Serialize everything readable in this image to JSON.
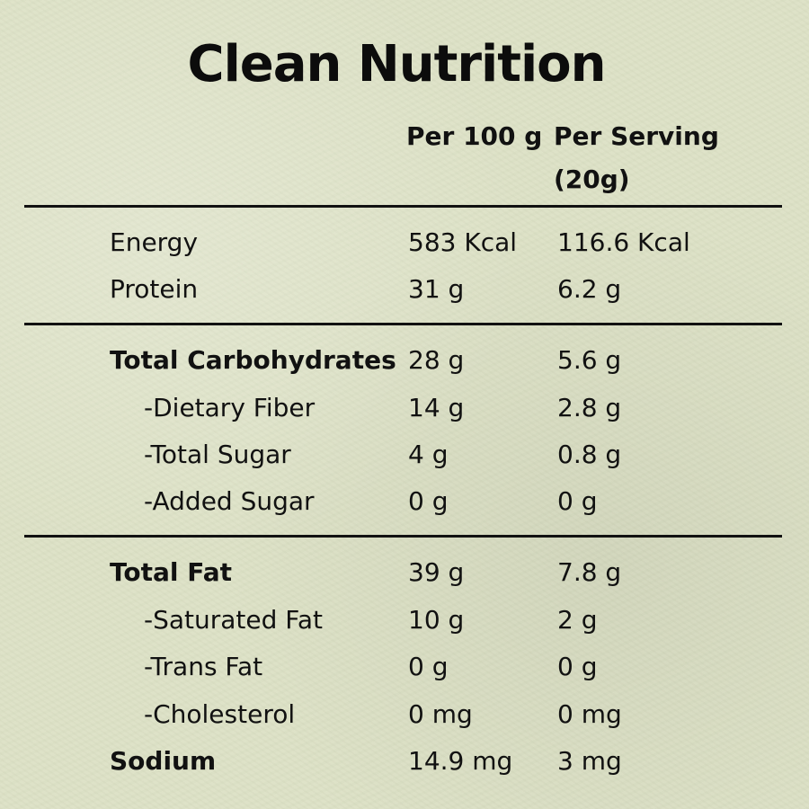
{
  "title": "Clean Nutrition",
  "headers": {
    "per_100g": "Per 100 g",
    "per_serving": "Per Serving (20g)"
  },
  "rows": [
    {
      "label": "Energy",
      "per_100g": "583 Kcal",
      "per_serving": "116.6 Kcal"
    },
    {
      "label": "Protein",
      "per_100g": "31 g",
      "per_serving": "6.2 g"
    },
    {
      "label": "Total Carbohydrates",
      "per_100g": "28 g",
      "per_serving": "5.6 g"
    },
    {
      "label": "-Dietary Fiber",
      "per_100g": "14 g",
      "per_serving": "2.8 g"
    },
    {
      "label": "-Total Sugar",
      "per_100g": "4 g",
      "per_serving": "0.8 g"
    },
    {
      "label": "-Added Sugar",
      "per_100g": "0 g",
      "per_serving": "0 g"
    },
    {
      "label": "Total Fat",
      "per_100g": "39 g",
      "per_serving": "7.8 g"
    },
    {
      "label": "-Saturated Fat",
      "per_100g": "10 g",
      "per_serving": "2 g"
    },
    {
      "label": "-Trans Fat",
      "per_100g": "0 g",
      "per_serving": "0 g"
    },
    {
      "label": "-Cholesterol",
      "per_100g": "0 mg",
      "per_serving": "0 mg"
    },
    {
      "label": "Sodium",
      "per_100g": "14.9 mg",
      "per_serving": "3 mg"
    }
  ],
  "colors": {
    "background": "#dde2c6",
    "text": "#111111"
  }
}
